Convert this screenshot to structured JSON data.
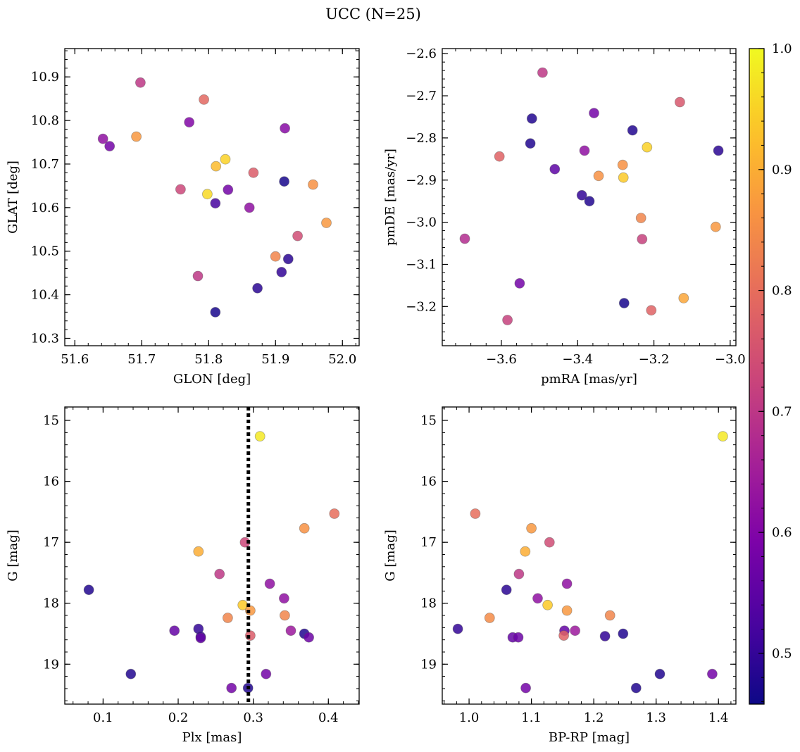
{
  "title": "UCC (N=25)",
  "chart_data": [
    {
      "type": "scatter",
      "xlabel": "GLON [deg]",
      "ylabel": "GLAT [deg]",
      "xlim": [
        51.585,
        52.025
      ],
      "ylim": [
        10.283,
        10.965
      ],
      "xticks": [
        51.6,
        51.7,
        51.8,
        51.9,
        52.0
      ],
      "xtick_labels": [
        "51.6",
        "51.7",
        "51.8",
        "51.9",
        "52.0"
      ],
      "yticks": [
        10.3,
        10.4,
        10.5,
        10.6,
        10.7,
        10.8,
        10.9
      ],
      "ytick_labels": [
        "10.3",
        "10.4",
        "10.5",
        "10.6",
        "10.7",
        "10.8",
        "10.9"
      ],
      "yinvert": false,
      "points": [
        {
          "x": 51.642,
          "y": 10.758,
          "c": 0.62
        },
        {
          "x": 51.652,
          "y": 10.741,
          "c": 0.58
        },
        {
          "x": 51.692,
          "y": 10.763,
          "c": 0.87
        },
        {
          "x": 51.698,
          "y": 10.887,
          "c": 0.7
        },
        {
          "x": 51.758,
          "y": 10.642,
          "c": 0.73
        },
        {
          "x": 51.771,
          "y": 10.796,
          "c": 0.6
        },
        {
          "x": 51.784,
          "y": 10.443,
          "c": 0.7
        },
        {
          "x": 51.793,
          "y": 10.848,
          "c": 0.79
        },
        {
          "x": 51.798,
          "y": 10.631,
          "c": 0.96
        },
        {
          "x": 51.81,
          "y": 10.61,
          "c": 0.52
        },
        {
          "x": 51.81,
          "y": 10.36,
          "c": 0.47
        },
        {
          "x": 51.811,
          "y": 10.695,
          "c": 0.92
        },
        {
          "x": 51.825,
          "y": 10.711,
          "c": 0.95
        },
        {
          "x": 51.829,
          "y": 10.641,
          "c": 0.58
        },
        {
          "x": 51.861,
          "y": 10.6,
          "c": 0.62
        },
        {
          "x": 51.867,
          "y": 10.68,
          "c": 0.77
        },
        {
          "x": 51.873,
          "y": 10.415,
          "c": 0.49
        },
        {
          "x": 51.9,
          "y": 10.488,
          "c": 0.84
        },
        {
          "x": 51.909,
          "y": 10.452,
          "c": 0.5
        },
        {
          "x": 51.913,
          "y": 10.66,
          "c": 0.47
        },
        {
          "x": 51.914,
          "y": 10.782,
          "c": 0.61
        },
        {
          "x": 51.919,
          "y": 10.482,
          "c": 0.49
        },
        {
          "x": 51.933,
          "y": 10.535,
          "c": 0.74
        },
        {
          "x": 51.956,
          "y": 10.653,
          "c": 0.86
        },
        {
          "x": 51.976,
          "y": 10.565,
          "c": 0.87
        }
      ]
    },
    {
      "type": "scatter",
      "xlabel": "pmRA [mas/yr]",
      "ylabel": "pmDE [mas/yr]",
      "xlim": [
        -3.755,
        -2.985
      ],
      "ylim": [
        -3.293,
        -2.588
      ],
      "xticks": [
        -3.6,
        -3.4,
        -3.2,
        -3.0
      ],
      "xtick_labels": [
        "−3.6",
        "−3.4",
        "−3.2",
        "−3.0"
      ],
      "yticks": [
        -3.2,
        -3.1,
        -3.0,
        -2.9,
        -2.8,
        -2.7,
        -2.6
      ],
      "ytick_labels": [
        "−3.2",
        "−3.1",
        "−3.0",
        "−2.9",
        "−2.8",
        "−2.7",
        "−2.6"
      ],
      "yinvert": false,
      "points": [
        {
          "x": -3.492,
          "y": -2.645,
          "c": 0.7
        },
        {
          "x": -3.132,
          "y": -2.715,
          "c": 0.76
        },
        {
          "x": -3.357,
          "y": -2.741,
          "c": 0.58
        },
        {
          "x": -3.52,
          "y": -2.754,
          "c": 0.48
        },
        {
          "x": -3.256,
          "y": -2.782,
          "c": 0.48
        },
        {
          "x": -3.524,
          "y": -2.813,
          "c": 0.48
        },
        {
          "x": -3.218,
          "y": -2.822,
          "c": 0.95
        },
        {
          "x": -3.382,
          "y": -2.83,
          "c": 0.62
        },
        {
          "x": -3.031,
          "y": -2.83,
          "c": 0.49
        },
        {
          "x": -3.605,
          "y": -2.844,
          "c": 0.78
        },
        {
          "x": -3.282,
          "y": -2.864,
          "c": 0.86
        },
        {
          "x": -3.46,
          "y": -2.874,
          "c": 0.55
        },
        {
          "x": -3.345,
          "y": -2.89,
          "c": 0.86
        },
        {
          "x": -3.28,
          "y": -2.894,
          "c": 0.94
        },
        {
          "x": -3.389,
          "y": -2.936,
          "c": 0.5
        },
        {
          "x": -3.369,
          "y": -2.95,
          "c": 0.48
        },
        {
          "x": -3.234,
          "y": -2.99,
          "c": 0.84
        },
        {
          "x": -3.038,
          "y": -3.011,
          "c": 0.87
        },
        {
          "x": -3.696,
          "y": -3.039,
          "c": 0.68
        },
        {
          "x": -3.231,
          "y": -3.04,
          "c": 0.72
        },
        {
          "x": -3.552,
          "y": -3.145,
          "c": 0.58
        },
        {
          "x": -3.122,
          "y": -3.18,
          "c": 0.89
        },
        {
          "x": -3.278,
          "y": -3.192,
          "c": 0.47
        },
        {
          "x": -3.207,
          "y": -3.209,
          "c": 0.78
        },
        {
          "x": -3.584,
          "y": -3.232,
          "c": 0.72
        }
      ]
    },
    {
      "type": "scatter",
      "xlabel": "Plx [mas]",
      "ylabel": "G [mag]",
      "xlim": [
        0.049,
        0.441
      ],
      "ylim": [
        19.655,
        14.78
      ],
      "xticks": [
        0.1,
        0.2,
        0.3,
        0.4
      ],
      "xtick_labels": [
        "0.1",
        "0.2",
        "0.3",
        "0.4"
      ],
      "yticks": [
        15,
        16,
        17,
        18,
        19
      ],
      "ytick_labels": [
        "15",
        "16",
        "17",
        "18",
        "19"
      ],
      "yinvert": true,
      "vline": 0.2935,
      "points": [
        {
          "x": 0.309,
          "y": 15.26,
          "c": 0.98
        },
        {
          "x": 0.408,
          "y": 16.53,
          "c": 0.8
        },
        {
          "x": 0.368,
          "y": 16.77,
          "c": 0.86
        },
        {
          "x": 0.289,
          "y": 17.0,
          "c": 0.73
        },
        {
          "x": 0.227,
          "y": 17.15,
          "c": 0.9
        },
        {
          "x": 0.255,
          "y": 17.52,
          "c": 0.7
        },
        {
          "x": 0.322,
          "y": 17.68,
          "c": 0.62
        },
        {
          "x": 0.081,
          "y": 17.78,
          "c": 0.48
        },
        {
          "x": 0.341,
          "y": 17.92,
          "c": 0.62
        },
        {
          "x": 0.286,
          "y": 18.03,
          "c": 0.94
        },
        {
          "x": 0.296,
          "y": 18.12,
          "c": 0.87
        },
        {
          "x": 0.342,
          "y": 18.2,
          "c": 0.84
        },
        {
          "x": 0.266,
          "y": 18.24,
          "c": 0.84
        },
        {
          "x": 0.227,
          "y": 18.42,
          "c": 0.5
        },
        {
          "x": 0.195,
          "y": 18.45,
          "c": 0.56
        },
        {
          "x": 0.35,
          "y": 18.45,
          "c": 0.64
        },
        {
          "x": 0.368,
          "y": 18.5,
          "c": 0.48
        },
        {
          "x": 0.296,
          "y": 18.53,
          "c": 0.77
        },
        {
          "x": 0.23,
          "y": 18.55,
          "c": 0.5
        },
        {
          "x": 0.23,
          "y": 18.57,
          "c": 0.56
        },
        {
          "x": 0.374,
          "y": 18.56,
          "c": 0.57
        },
        {
          "x": 0.137,
          "y": 19.16,
          "c": 0.48
        },
        {
          "x": 0.317,
          "y": 19.16,
          "c": 0.58
        },
        {
          "x": 0.271,
          "y": 19.39,
          "c": 0.58
        },
        {
          "x": 0.293,
          "y": 19.39,
          "c": 0.48
        }
      ]
    },
    {
      "type": "scatter",
      "xlabel": "BP-RP [mag]",
      "ylabel": "G [mag]",
      "xlim": [
        0.957,
        1.428
      ],
      "ylim": [
        19.655,
        14.78
      ],
      "xticks": [
        1.0,
        1.1,
        1.2,
        1.3,
        1.4
      ],
      "xtick_labels": [
        "1.0",
        "1.1",
        "1.2",
        "1.3",
        "1.4"
      ],
      "yticks": [
        15,
        16,
        17,
        18,
        19
      ],
      "ytick_labels": [
        "15",
        "16",
        "17",
        "18",
        "19"
      ],
      "yinvert": true,
      "points": [
        {
          "x": 1.407,
          "y": 15.26,
          "c": 0.98
        },
        {
          "x": 1.01,
          "y": 16.53,
          "c": 0.8
        },
        {
          "x": 1.1,
          "y": 16.77,
          "c": 0.87
        },
        {
          "x": 1.129,
          "y": 17.0,
          "c": 0.74
        },
        {
          "x": 1.09,
          "y": 17.15,
          "c": 0.9
        },
        {
          "x": 1.08,
          "y": 17.52,
          "c": 0.7
        },
        {
          "x": 1.157,
          "y": 17.68,
          "c": 0.62
        },
        {
          "x": 1.06,
          "y": 17.78,
          "c": 0.49
        },
        {
          "x": 1.11,
          "y": 17.92,
          "c": 0.62
        },
        {
          "x": 1.126,
          "y": 18.03,
          "c": 0.94
        },
        {
          "x": 1.157,
          "y": 18.12,
          "c": 0.87
        },
        {
          "x": 1.226,
          "y": 18.2,
          "c": 0.84
        },
        {
          "x": 1.033,
          "y": 18.24,
          "c": 0.85
        },
        {
          "x": 0.982,
          "y": 18.42,
          "c": 0.5
        },
        {
          "x": 1.153,
          "y": 18.45,
          "c": 0.56
        },
        {
          "x": 1.17,
          "y": 18.45,
          "c": 0.64
        },
        {
          "x": 1.247,
          "y": 18.5,
          "c": 0.48
        },
        {
          "x": 1.152,
          "y": 18.53,
          "c": 0.78
        },
        {
          "x": 1.218,
          "y": 18.54,
          "c": 0.5
        },
        {
          "x": 1.07,
          "y": 18.56,
          "c": 0.56
        },
        {
          "x": 1.079,
          "y": 18.56,
          "c": 0.57
        },
        {
          "x": 1.306,
          "y": 19.16,
          "c": 0.48
        },
        {
          "x": 1.39,
          "y": 19.16,
          "c": 0.58
        },
        {
          "x": 1.091,
          "y": 19.39,
          "c": 0.58
        },
        {
          "x": 1.268,
          "y": 19.39,
          "c": 0.48
        }
      ]
    }
  ],
  "colorbar": {
    "colormap": "plasma",
    "range": [
      0.458,
      1.0
    ],
    "ticks": [
      0.5,
      0.6,
      0.7,
      0.8,
      0.9,
      1.0
    ],
    "tick_labels": [
      "0.5",
      "0.6",
      "0.7",
      "0.8",
      "0.9",
      "1.0"
    ]
  }
}
